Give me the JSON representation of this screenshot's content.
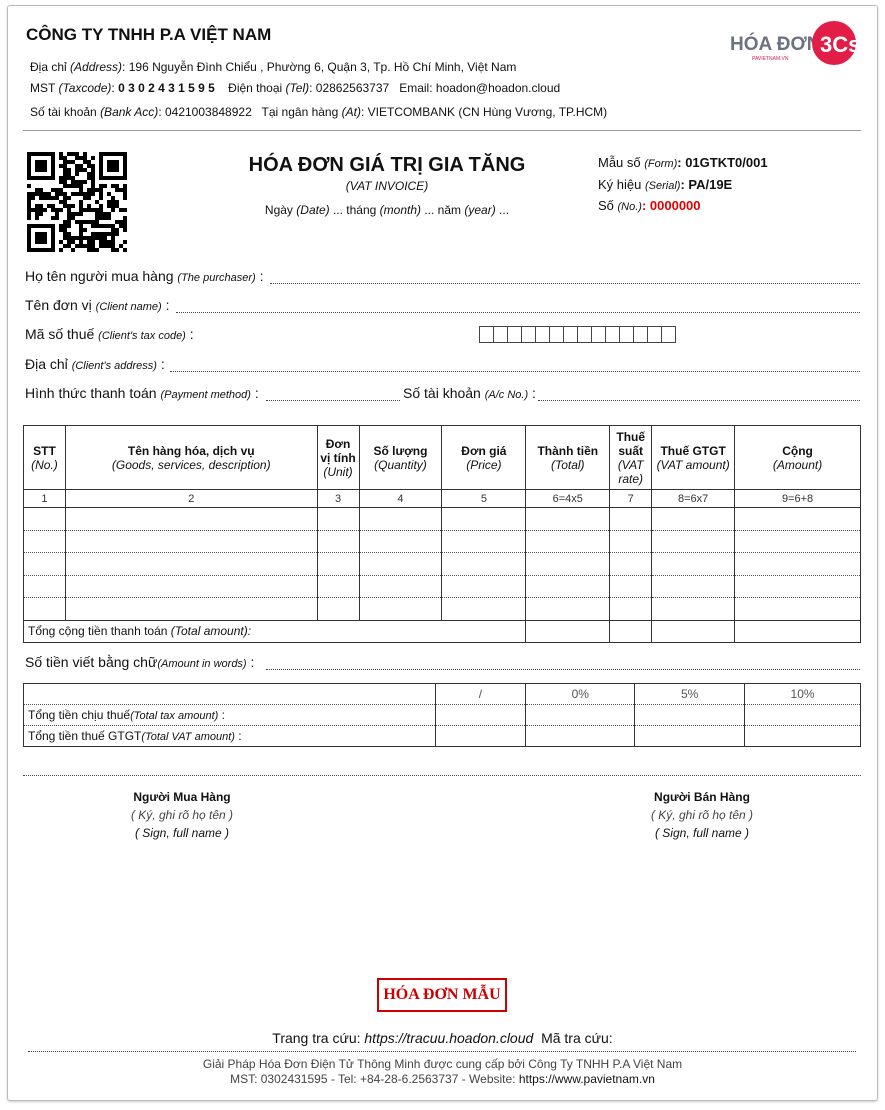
{
  "seller": {
    "name": "CÔNG TY TNHH P.A VIỆT NAM",
    "address_label": "Địa chỉ",
    "address_en": "(Address)",
    "address": ": 196 Nguyễn Đình Chiểu , Phường 6, Quận 3, Tp. Hồ Chí Minh, Việt Nam",
    "tax_label": "MST",
    "tax_en": "(Taxcode)",
    "tax_code": "0 3 0 2 4 3 1 5 9 5",
    "tel_label": "Điện thoại",
    "tel_en": "(Tel)",
    "tel": ": 02862563737",
    "email": "Email: hoadon@hoadon.cloud",
    "bank_label": "Số tài khoản",
    "bank_en": "(Bank Acc)",
    "bank": ": 0421003848922",
    "bankname_label": "Tại ngân hàng",
    "bankname_en": "(At)",
    "bankname": ": VIETCOMBANK (CN Hùng Vương, TP.HCM)"
  },
  "logo": {
    "text": "HÓA ĐƠN",
    "badge": "3Cs",
    "tagline": "PAVIETNAM.VN",
    "color": "#e11d48"
  },
  "invoice": {
    "title": "HÓA ĐƠN GIÁ TRỊ GIA TĂNG",
    "subtitle": "(VAT INVOICE)",
    "date_line": [
      "Ngày ",
      "(Date)",
      " ... tháng ",
      "(month)",
      " ... năm ",
      "(year)",
      " ..."
    ],
    "form_label": "Mẫu số ",
    "form_en": "(Form)",
    "form": ": 01GTKT0/001",
    "serial_label": "Ký hiệu ",
    "serial_en": "(Serial)",
    "serial": ": PA/19E",
    "no_label": "Số ",
    "no_en": "(No.)",
    "no": ": 0000000",
    "no_color": "#e00000"
  },
  "buyer": {
    "purchaser": [
      "Họ tên người mua hàng ",
      "(The purchaser)",
      " :"
    ],
    "client": [
      "Tên đơn vị ",
      "(Client name)",
      " :"
    ],
    "taxcode": [
      "Mã số thuế ",
      "(Client's tax code)",
      " :"
    ],
    "address": [
      "Địa chỉ ",
      "(Client's address)",
      " :"
    ],
    "payment": [
      "Hình thức thanh toán ",
      "(Payment method)",
      " :"
    ],
    "account": [
      "Số tài khoản ",
      "(A/c No.)",
      " :"
    ]
  },
  "table": {
    "headers": [
      {
        "main": "STT",
        "sub": "(No.)"
      },
      {
        "main": "Tên hàng hóa, dịch vụ",
        "sub": "(Goods, services, description)"
      },
      {
        "main": "Đơn vị tính",
        "sub": "(Unit)"
      },
      {
        "main": "Số lượng",
        "sub": "(Quantity)"
      },
      {
        "main": "Đơn giá",
        "sub": "(Price)"
      },
      {
        "main": "Thành tiền",
        "sub": "(Total)"
      },
      {
        "main": "Thuế suất",
        "sub": "(VAT rate)"
      },
      {
        "main": "Thuế GTGT",
        "sub": "(VAT amount)"
      },
      {
        "main": "Cộng",
        "sub": "(Amount)"
      }
    ],
    "numbering": [
      "1",
      "2",
      "3",
      "4",
      "5",
      "6=4x5",
      "7",
      "8=6x7",
      "9=6+8"
    ],
    "total_label": "Tổng cộng tiền thanh toán ",
    "total_en": "(Total amount):"
  },
  "amount_words": [
    "Số tiền viết bằng chữ",
    "(Amount in words)",
    " :"
  ],
  "tax_summary": {
    "columns": [
      "/",
      "0%",
      "5%",
      "10%"
    ],
    "taxable": [
      "Tổng tiền chịu thuế",
      "(Total tax amount)",
      " :"
    ],
    "vat": [
      "Tổng tiền thuế GTGT",
      "(Total VAT amount)",
      " :"
    ]
  },
  "signatures": {
    "buyer": {
      "title": "Người Mua Hàng",
      "vi": "( Ký, ghi rõ họ tên )",
      "en": "( Sign, full name )"
    },
    "seller": {
      "title": "Người Bán Hàng",
      "vi": "( Ký, ghi rõ họ tên )",
      "en": "( Sign, full name )"
    }
  },
  "stamp": {
    "text": "HÓA ĐƠN MẪU",
    "color": "#cc0000"
  },
  "lookup": {
    "label": "Trang tra cứu: ",
    "url": "https://tracuu.hoadon.cloud",
    "code_label": "  Mã tra cứu:"
  },
  "footer": {
    "line1": "Giải Pháp Hóa Đơn Điện Tử Thông Minh được cung cấp bởi Công Ty TNHH P.A Việt Nam",
    "line2": "MST: 0302431595 - Tel: +84-28-6.2563737 - Website: ",
    "website": "https://www.pavietnam.vn"
  }
}
